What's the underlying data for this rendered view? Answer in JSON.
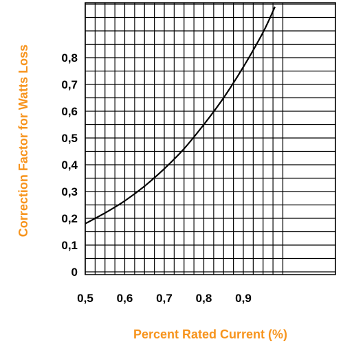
{
  "chart_data": {
    "type": "line",
    "xlabel": "Percent Rated Current (%)",
    "ylabel": "Correction Factor for Watts Loss",
    "xlim": [
      0.5,
      1.0
    ],
    "ylim": [
      0,
      1.0
    ],
    "x_tick_labels": [
      {
        "value": 0.5,
        "label": "0,5"
      },
      {
        "value": 0.6,
        "label": "0,6"
      },
      {
        "value": 0.7,
        "label": "0,7"
      },
      {
        "value": 0.8,
        "label": "0,8"
      },
      {
        "value": 0.9,
        "label": "0,9"
      }
    ],
    "y_tick_labels": [
      {
        "value": 0.0,
        "label": "0"
      },
      {
        "value": 0.1,
        "label": "0,1"
      },
      {
        "value": 0.2,
        "label": "0,2"
      },
      {
        "value": 0.3,
        "label": "0,3"
      },
      {
        "value": 0.4,
        "label": "0,4"
      },
      {
        "value": 0.5,
        "label": "0,5"
      },
      {
        "value": 0.6,
        "label": "0,6"
      },
      {
        "value": 0.7,
        "label": "0,7"
      },
      {
        "value": 0.8,
        "label": "0,8"
      }
    ],
    "grid": true,
    "grid_x_step": 0.025,
    "grid_y_step": 0.05,
    "series": [
      {
        "x": [
          0.5,
          0.55,
          0.6,
          0.65,
          0.7,
          0.75,
          0.8,
          0.85,
          0.9,
          0.95,
          0.98
        ],
        "y": [
          0.18,
          0.22,
          0.265,
          0.32,
          0.385,
          0.46,
          0.55,
          0.65,
          0.765,
          0.895,
          0.99
        ]
      }
    ],
    "colors": {
      "axis_title": "#f7941d",
      "line": "#000000",
      "grid": "#000000"
    }
  }
}
